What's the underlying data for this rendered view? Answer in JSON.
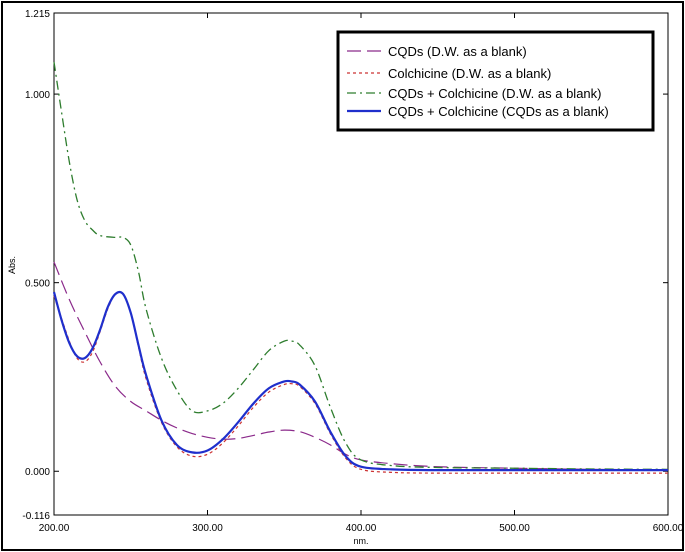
{
  "chart_data": {
    "type": "line",
    "xlabel": "nm.",
    "ylabel": "Abs.",
    "xlim": [
      200,
      600
    ],
    "ylim": [
      -0.116,
      1.215
    ],
    "x_ticks": [
      "200.00",
      "300.00",
      "400.00",
      "500.00",
      "600.00"
    ],
    "x_tick_values": [
      200,
      300,
      400,
      500,
      600
    ],
    "y_ticks": [
      "1.215",
      "1.000",
      "0.500",
      "0.000",
      "-0.116"
    ],
    "y_tick_values": [
      1.215,
      1.0,
      0.5,
      0.0,
      -0.116
    ],
    "grid": false,
    "legend_position": "top-right",
    "series": [
      {
        "name": "CQDs (D.W. as a blank)",
        "color": "#8B2A8B",
        "dash": "long-dash",
        "x": [
          200,
          210,
          220,
          230,
          240,
          250,
          260,
          270,
          280,
          290,
          300,
          310,
          320,
          330,
          340,
          350,
          360,
          370,
          380,
          390,
          400,
          420,
          450,
          500,
          550,
          600
        ],
        "y": [
          0.555,
          0.455,
          0.37,
          0.29,
          0.225,
          0.185,
          0.16,
          0.135,
          0.115,
          0.1,
          0.09,
          0.085,
          0.087,
          0.095,
          0.104,
          0.109,
          0.105,
          0.09,
          0.07,
          0.045,
          0.03,
          0.02,
          0.012,
          0.008,
          0.005,
          0.004
        ]
      },
      {
        "name": "Colchicine (D.W. as a blank)",
        "color": "#CC3333",
        "dash": "short-dash",
        "x": [
          200,
          210,
          215,
          220,
          225,
          230,
          235,
          240,
          245,
          250,
          255,
          260,
          270,
          280,
          290,
          300,
          310,
          320,
          330,
          340,
          350,
          355,
          360,
          370,
          380,
          390,
          400,
          420,
          450,
          500,
          550,
          600
        ],
        "y": [
          0.465,
          0.345,
          0.3,
          0.29,
          0.315,
          0.37,
          0.43,
          0.47,
          0.47,
          0.42,
          0.33,
          0.245,
          0.13,
          0.065,
          0.04,
          0.045,
          0.075,
          0.12,
          0.17,
          0.21,
          0.23,
          0.232,
          0.225,
          0.18,
          0.1,
          0.035,
          0.005,
          -0.003,
          -0.005,
          -0.005,
          -0.005,
          -0.005
        ]
      },
      {
        "name": "CQDs + Colchicine (D.W. as a blank)",
        "color": "#2E7D2E",
        "dash": "dash-dot",
        "x": [
          200,
          205,
          210,
          215,
          220,
          225,
          230,
          240,
          245,
          250,
          255,
          260,
          270,
          280,
          290,
          300,
          310,
          320,
          330,
          340,
          350,
          355,
          360,
          370,
          380,
          390,
          400,
          420,
          450,
          500,
          550,
          600
        ],
        "y": [
          1.085,
          0.95,
          0.82,
          0.72,
          0.665,
          0.64,
          0.625,
          0.62,
          0.62,
          0.6,
          0.53,
          0.43,
          0.3,
          0.215,
          0.16,
          0.16,
          0.18,
          0.22,
          0.27,
          0.32,
          0.345,
          0.345,
          0.335,
          0.28,
          0.17,
          0.075,
          0.03,
          0.015,
          0.01,
          0.008,
          0.006,
          0.005
        ]
      },
      {
        "name": "CQDs + Colchicine (CQDs as a blank)",
        "color": "#1F2FCC",
        "dash": "solid",
        "x": [
          200,
          205,
          210,
          215,
          220,
          225,
          230,
          235,
          240,
          245,
          250,
          255,
          260,
          270,
          280,
          290,
          300,
          310,
          320,
          330,
          340,
          350,
          355,
          360,
          370,
          380,
          390,
          400,
          420,
          450,
          500,
          550,
          600
        ],
        "y": [
          0.475,
          0.4,
          0.34,
          0.305,
          0.3,
          0.325,
          0.375,
          0.435,
          0.47,
          0.47,
          0.42,
          0.335,
          0.255,
          0.135,
          0.07,
          0.05,
          0.055,
          0.085,
          0.13,
          0.18,
          0.22,
          0.238,
          0.238,
          0.23,
          0.185,
          0.105,
          0.04,
          0.012,
          0.005,
          0.003,
          0.003,
          0.003,
          0.003
        ]
      }
    ]
  }
}
